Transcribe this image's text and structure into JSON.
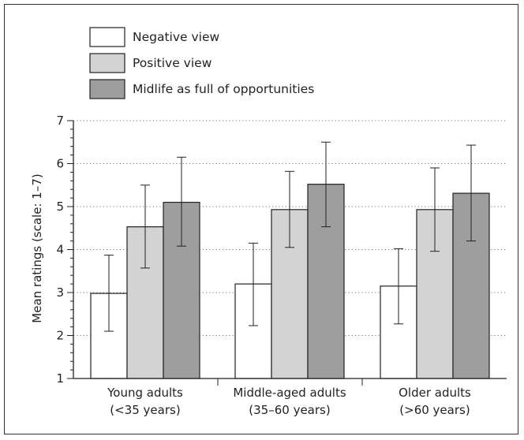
{
  "chart_data": {
    "type": "bar",
    "categories": [
      [
        "Young adults",
        "(<35 years)"
      ],
      [
        "Middle-aged adults",
        "(35–60 years)"
      ],
      [
        "Older adults",
        "(>60 years)"
      ]
    ],
    "series": [
      {
        "name": "Negative view",
        "color": "#ffffff",
        "values": [
          2.98,
          3.2,
          3.15
        ],
        "err_low": [
          2.1,
          2.23,
          2.27
        ],
        "err_high": [
          3.87,
          4.15,
          4.02
        ]
      },
      {
        "name": "Positive view",
        "color": "#d3d3d3",
        "values": [
          4.53,
          4.93,
          4.93
        ],
        "err_low": [
          3.57,
          4.05,
          3.96
        ],
        "err_high": [
          5.5,
          5.82,
          5.9
        ]
      },
      {
        "name": "Midlife as full of opportunities",
        "color": "#9e9e9e",
        "values": [
          5.1,
          5.52,
          5.31
        ],
        "err_low": [
          4.08,
          4.53,
          4.2
        ],
        "err_high": [
          6.15,
          6.5,
          6.43
        ]
      }
    ],
    "ylabel": "Mean ratings (scale: 1–7)",
    "ylim": [
      1,
      7
    ],
    "yticks": [
      1,
      2,
      3,
      4,
      5,
      6,
      7
    ],
    "grid": "horizontal dotted",
    "legend": "top-left"
  }
}
